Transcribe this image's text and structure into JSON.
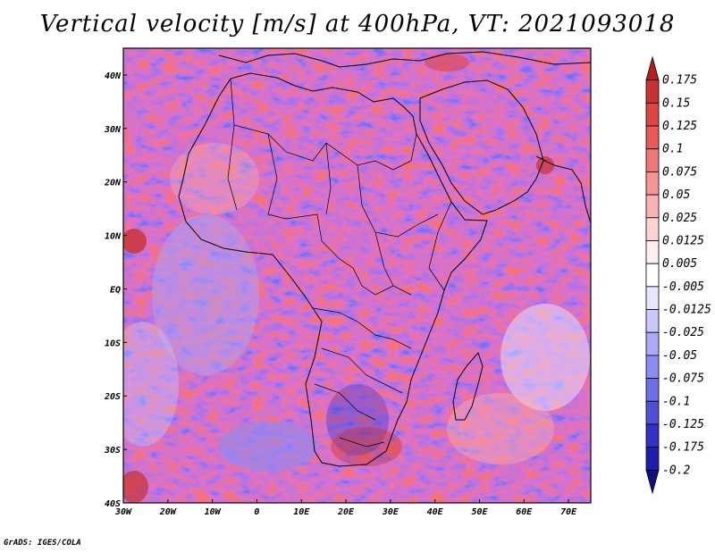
{
  "title": "Vertical velocity [m/s] at 400hPa, VT: 2021093018",
  "credit": "GrADS: IGES/COLA",
  "map": {
    "lon_range": [
      -30,
      75
    ],
    "lat_range": [
      -40,
      45
    ],
    "lon_ticks": [
      {
        "value": -30,
        "label": "30W"
      },
      {
        "value": -20,
        "label": "20W"
      },
      {
        "value": -10,
        "label": "10W"
      },
      {
        "value": 0,
        "label": "0"
      },
      {
        "value": 10,
        "label": "10E"
      },
      {
        "value": 20,
        "label": "20E"
      },
      {
        "value": 30,
        "label": "30E"
      },
      {
        "value": 40,
        "label": "40E"
      },
      {
        "value": 50,
        "label": "50E"
      },
      {
        "value": 60,
        "label": "60E"
      },
      {
        "value": 70,
        "label": "70E"
      }
    ],
    "lat_ticks": [
      {
        "value": 40,
        "label": "40N"
      },
      {
        "value": 30,
        "label": "30N"
      },
      {
        "value": 20,
        "label": "20N"
      },
      {
        "value": 10,
        "label": "10N"
      },
      {
        "value": 0,
        "label": "EQ"
      },
      {
        "value": -10,
        "label": "10S"
      },
      {
        "value": -20,
        "label": "20S"
      },
      {
        "value": -30,
        "label": "30S"
      },
      {
        "value": -40,
        "label": "40S"
      }
    ]
  },
  "colorbar": {
    "levels": [
      "0.175",
      "0.15",
      "0.125",
      "0.1",
      "0.075",
      "0.05",
      "0.025",
      "0.0125",
      "0.005",
      "-0.005",
      "-0.0125",
      "-0.025",
      "-0.05",
      "-0.075",
      "-0.1",
      "-0.125",
      "-0.175",
      "-0.2"
    ],
    "colors": [
      "#b41e1e",
      "#c83232",
      "#dc4646",
      "#e65a5a",
      "#ee7878",
      "#f49696",
      "#f8b4b4",
      "#fcd2d2",
      "#fff0f0",
      "#ffffff",
      "#e6e6ff",
      "#c8c8fa",
      "#aaaaf5",
      "#8c8cf0",
      "#6e6ee6",
      "#5050d7",
      "#3232c3",
      "#1e1eaa",
      "#0f0f82"
    ]
  }
}
